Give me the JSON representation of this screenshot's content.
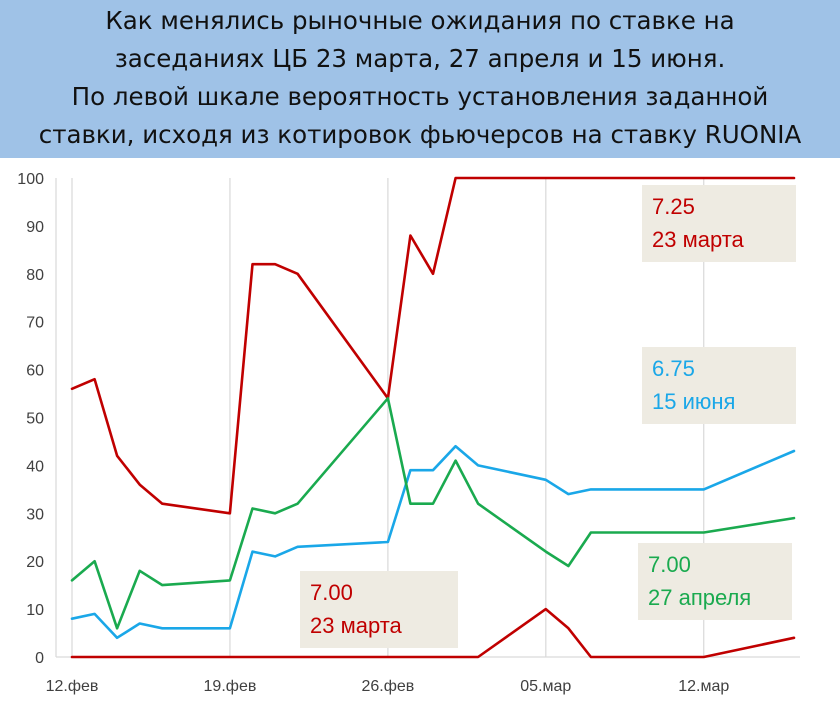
{
  "header": {
    "title_lines": [
      "Как менялись рыночные ожидания по ставке на",
      "заседаниях ЦБ 23 марта, 27 апреля и 15 июня.",
      "По левой шкале вероятность установления заданной",
      "ставки, исходя из котировок фьючерсов на ставку RUONIA"
    ]
  },
  "colors": {
    "header_bg": "#9fc2e7",
    "dark_red": "#c00000",
    "blue": "#1aa7e8",
    "green": "#1aaa4f",
    "label_box": "#eeebe2",
    "grid": "#d9d9d9"
  },
  "chart_data": {
    "type": "line",
    "title": "Как менялись рыночные ожидания по ставке на заседаниях ЦБ 23 марта, 27 апреля и 15 июня. По левой шкале вероятность установления заданной ставки, исходя из котировок фьючерсов на ставку RUONIA",
    "xlabel": "",
    "ylabel": "",
    "ylim": [
      0,
      100
    ],
    "yticks": [
      0,
      10,
      20,
      30,
      40,
      50,
      60,
      70,
      80,
      90,
      100
    ],
    "xlim": [
      "2018-02-12",
      "2018-03-16"
    ],
    "xticks": [
      {
        "date": "2018-02-12",
        "label": "12.фев"
      },
      {
        "date": "2018-02-19",
        "label": "19.фев"
      },
      {
        "date": "2018-02-26",
        "label": "26.фев"
      },
      {
        "date": "2018-03-05",
        "label": "05.мар"
      },
      {
        "date": "2018-03-12",
        "label": "12.мар"
      }
    ],
    "grid": "vertical",
    "series": [
      {
        "name": "7.25 23 марта",
        "color": "#c00000",
        "x": [
          "2018-02-12",
          "2018-02-13",
          "2018-02-14",
          "2018-02-15",
          "2018-02-16",
          "2018-02-19",
          "2018-02-20",
          "2018-02-21",
          "2018-02-22",
          "2018-02-26",
          "2018-02-27",
          "2018-02-28",
          "2018-03-01",
          "2018-03-02",
          "2018-03-05",
          "2018-03-06",
          "2018-03-07",
          "2018-03-12",
          "2018-03-16"
        ],
        "y": [
          56,
          58,
          42,
          36,
          32,
          30,
          82,
          82,
          80,
          54,
          88,
          80,
          100,
          100,
          100,
          100,
          100,
          100,
          100
        ]
      },
      {
        "name": "6.75 15 июня",
        "color": "#1aa7e8",
        "x": [
          "2018-02-12",
          "2018-02-13",
          "2018-02-14",
          "2018-02-15",
          "2018-02-16",
          "2018-02-19",
          "2018-02-20",
          "2018-02-21",
          "2018-02-22",
          "2018-02-26",
          "2018-02-27",
          "2018-02-28",
          "2018-03-01",
          "2018-03-02",
          "2018-03-05",
          "2018-03-06",
          "2018-03-07",
          "2018-03-12",
          "2018-03-16"
        ],
        "y": [
          8,
          9,
          4,
          7,
          6,
          6,
          22,
          21,
          23,
          24,
          39,
          39,
          44,
          40,
          37,
          34,
          35,
          35,
          43
        ]
      },
      {
        "name": "7.00 27 апреля",
        "color": "#1aaa4f",
        "x": [
          "2018-02-12",
          "2018-02-13",
          "2018-02-14",
          "2018-02-15",
          "2018-02-16",
          "2018-02-19",
          "2018-02-20",
          "2018-02-21",
          "2018-02-22",
          "2018-02-26",
          "2018-02-27",
          "2018-02-28",
          "2018-03-01",
          "2018-03-02",
          "2018-03-05",
          "2018-03-06",
          "2018-03-07",
          "2018-03-12",
          "2018-03-16"
        ],
        "y": [
          16,
          20,
          6,
          18,
          15,
          16,
          31,
          30,
          32,
          54,
          32,
          32,
          41,
          32,
          22,
          19,
          26,
          26,
          29
        ]
      },
      {
        "name": "7.00 23 марта",
        "color": "#c00000",
        "x": [
          "2018-02-12",
          "2018-02-19",
          "2018-02-26",
          "2018-03-02",
          "2018-03-05",
          "2018-03-06",
          "2018-03-07",
          "2018-03-12",
          "2018-03-16"
        ],
        "y": [
          0,
          0,
          0,
          0,
          10,
          6,
          0,
          0,
          4
        ]
      }
    ],
    "annotations": [
      {
        "rate": "7.25",
        "meeting": "23 марта",
        "color": "#c00000"
      },
      {
        "rate": "6.75",
        "meeting": "15 июня",
        "color": "#1aa7e8"
      },
      {
        "rate": "7.00",
        "meeting": "27 апреля",
        "color": "#1aaa4f"
      },
      {
        "rate": "7.00",
        "meeting": "23 марта",
        "color": "#c00000"
      }
    ]
  }
}
